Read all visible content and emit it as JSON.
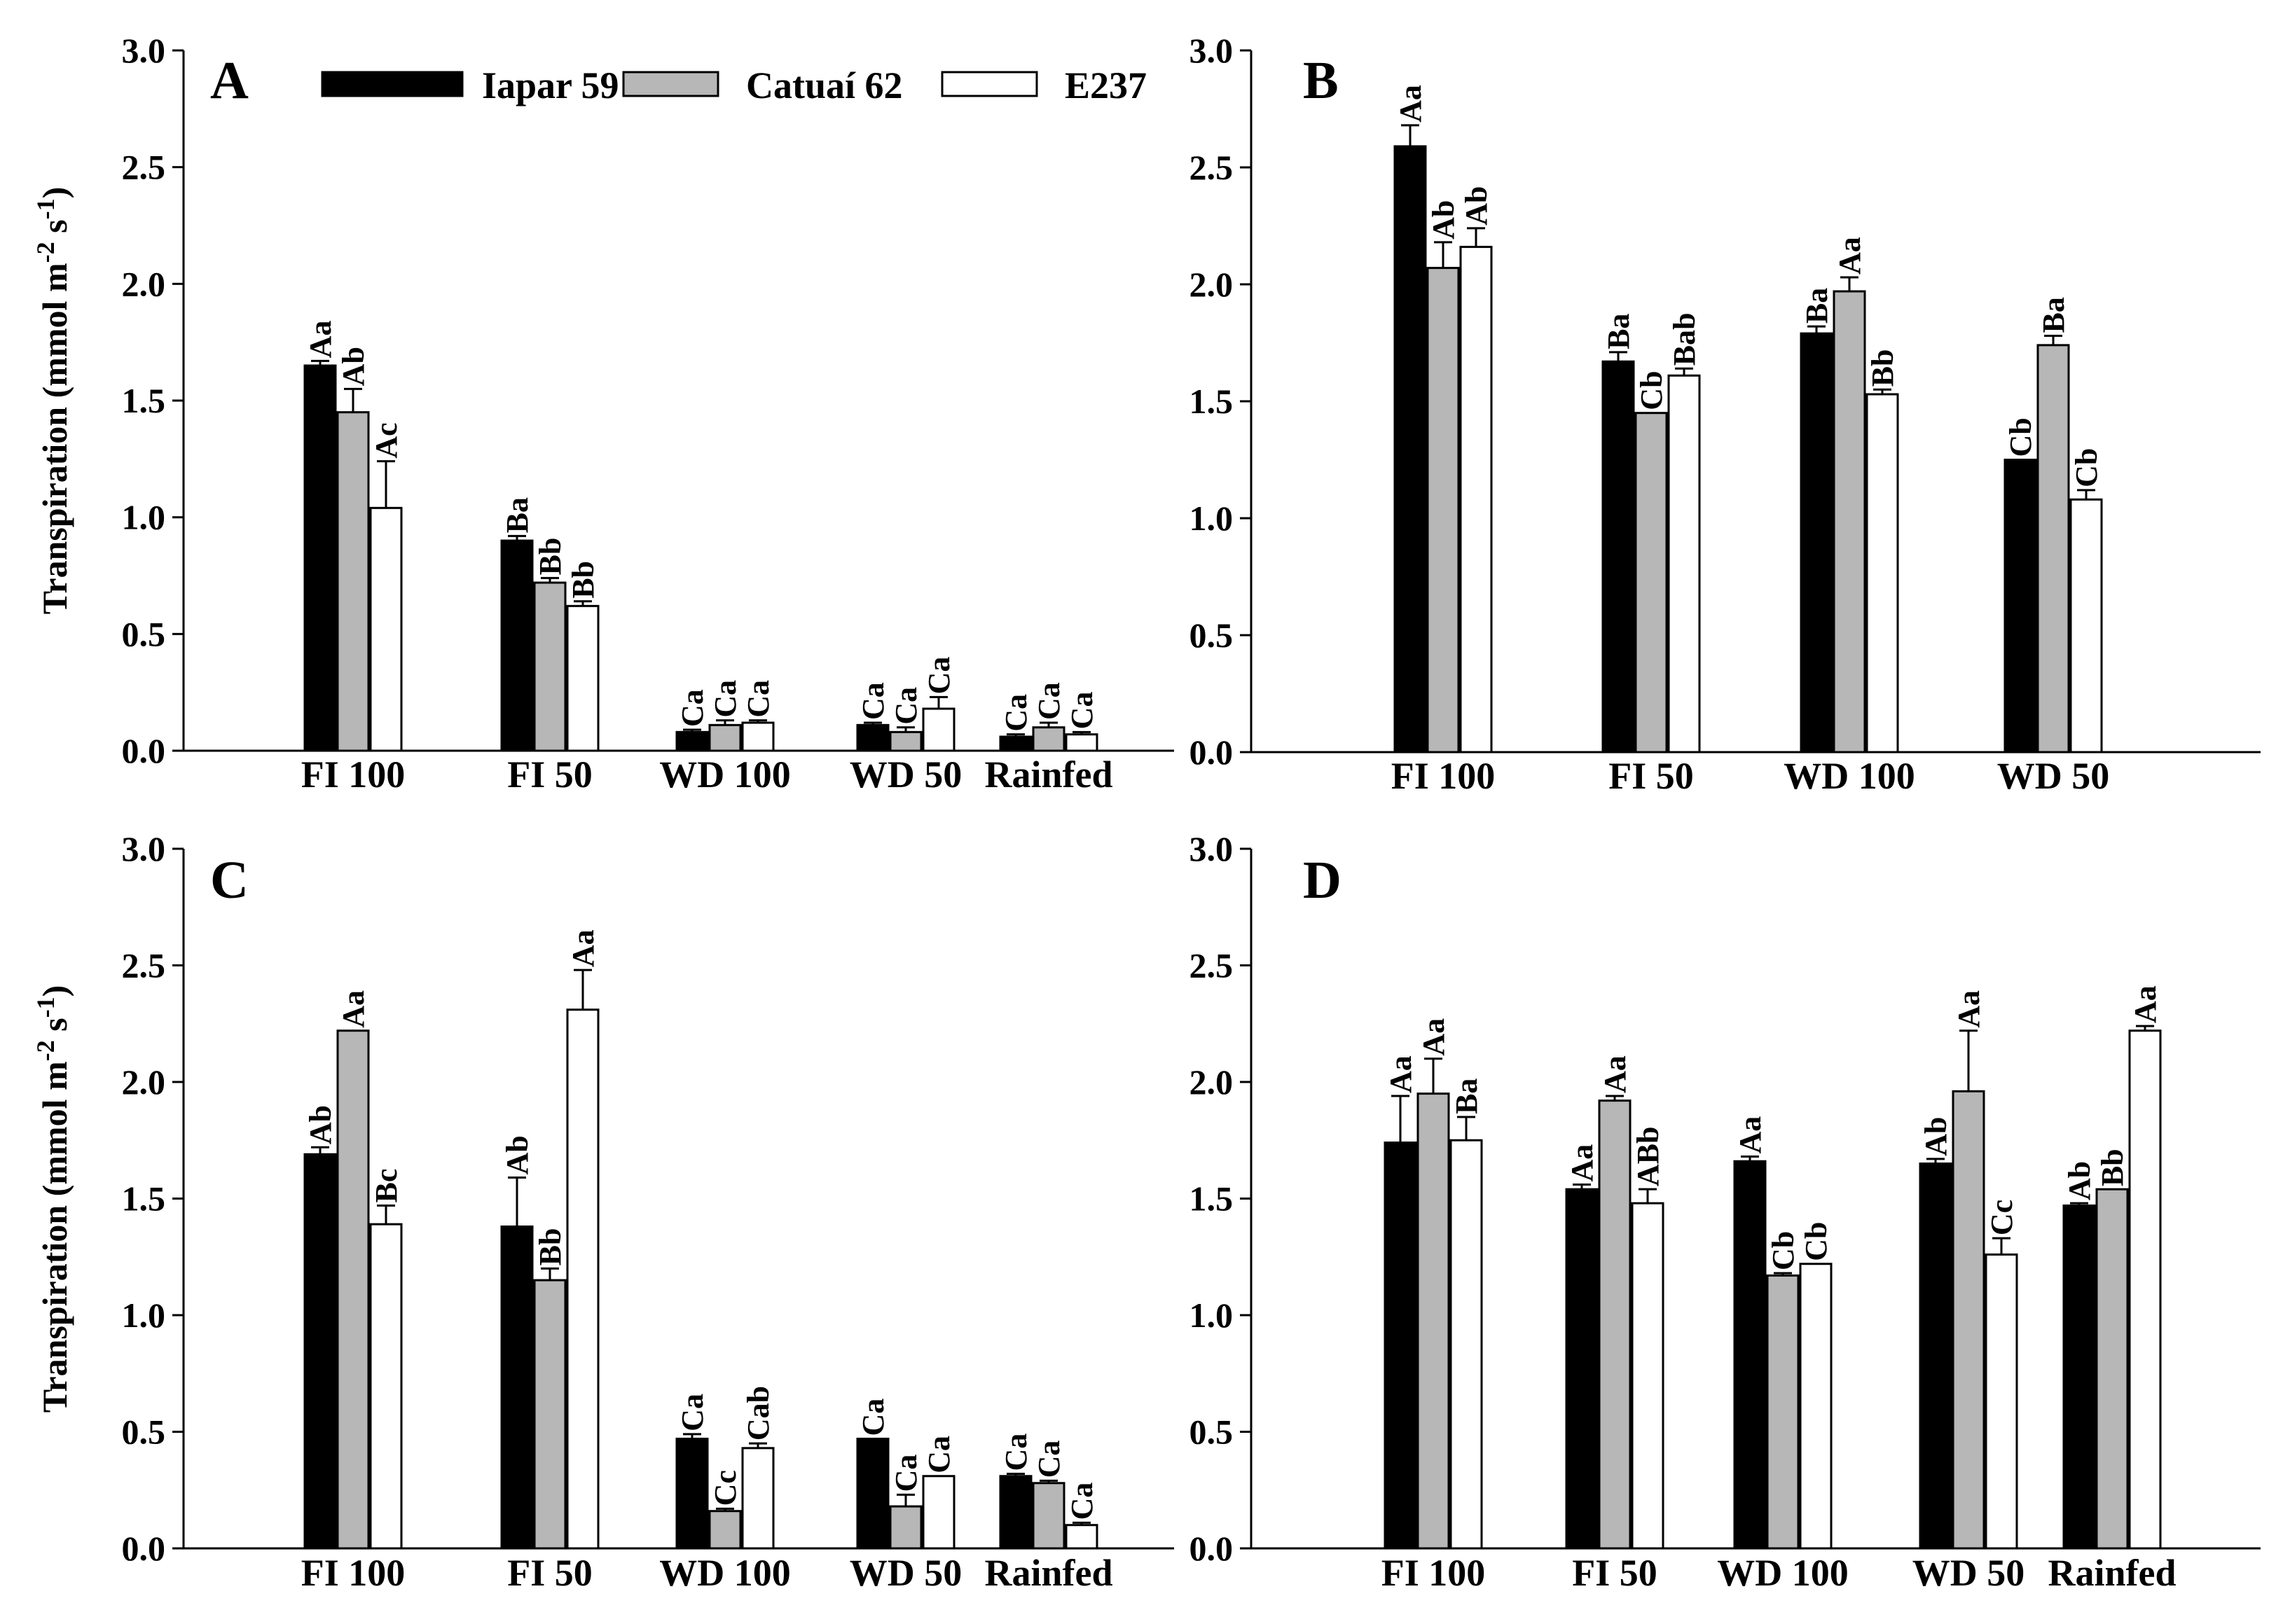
{
  "colors": {
    "Iapar 59": "#000000",
    "Catuaí 62": "#b7b7b7",
    "E237": "#ffffff"
  },
  "chart_data": [
    {
      "type": "bar",
      "panel": "A",
      "ylabel": "Transpiration (mmol m",
      "ylabel_sup1": "-2",
      "ylabel_mid": " s",
      "ylabel_sup2": "-1",
      "ylabel_end": ")",
      "ylim": [
        0,
        3.0
      ],
      "yticks": [
        "0.0",
        "0.5",
        "1.0",
        "1.5",
        "2.0",
        "2.5",
        "3.0"
      ],
      "categories": [
        "FI 100",
        "FI 50",
        "WD 100",
        "WD 50",
        "Rainfed"
      ],
      "legend": [
        "Iapar 59",
        "Catuaí 62",
        "E237"
      ],
      "series": [
        {
          "name": "Iapar 59",
          "values": [
            1.65,
            0.9,
            0.08,
            0.11,
            0.06
          ],
          "errors": [
            0.02,
            0.02,
            0.01,
            0.01,
            0.01
          ],
          "labels": [
            "Aa",
            "Ba",
            "Ca",
            "Ca",
            "Ca"
          ]
        },
        {
          "name": "Catuaí 62",
          "values": [
            1.45,
            0.72,
            0.11,
            0.08,
            0.1
          ],
          "errors": [
            0.1,
            0.02,
            0.02,
            0.02,
            0.02
          ],
          "labels": [
            "Ab",
            "Bb",
            "Ca",
            "Ca",
            "Ca"
          ]
        },
        {
          "name": "E237",
          "values": [
            1.04,
            0.62,
            0.12,
            0.18,
            0.07
          ],
          "errors": [
            0.2,
            0.02,
            0.01,
            0.05,
            0.01
          ],
          "labels": [
            "Ac",
            "Bb",
            "Ca",
            "Ca",
            "Ca"
          ]
        }
      ]
    },
    {
      "type": "bar",
      "panel": "B",
      "ylabel": "",
      "ylim": [
        0,
        3.0
      ],
      "yticks": [
        "0.0",
        "0.5",
        "1.0",
        "1.5",
        "2.0",
        "2.5",
        "3.0"
      ],
      "categories": [
        "FI 100",
        "FI 50",
        "WD 100",
        "WD 50"
      ],
      "series": [
        {
          "name": "Iapar 59",
          "values": [
            2.59,
            1.67,
            1.79,
            1.25
          ],
          "errors": [
            0.09,
            0.04,
            0.03,
            0.0
          ],
          "labels": [
            "Aa",
            "Ba",
            "Ba",
            "Cb"
          ]
        },
        {
          "name": "Catuaí 62",
          "values": [
            2.07,
            1.45,
            1.97,
            1.74
          ],
          "errors": [
            0.11,
            0.0,
            0.06,
            0.04
          ],
          "labels": [
            "Ab",
            "Cb",
            "Aa",
            "Ba"
          ]
        },
        {
          "name": "E237",
          "values": [
            2.16,
            1.61,
            1.53,
            1.08
          ],
          "errors": [
            0.08,
            0.03,
            0.02,
            0.04
          ],
          "labels": [
            "Ab",
            "Bab",
            "Bb",
            "Cb"
          ]
        }
      ]
    },
    {
      "type": "bar",
      "panel": "C",
      "ylabel": "Transpiration (mmol m",
      "ylabel_sup1": "-2",
      "ylabel_mid": " s",
      "ylabel_sup2": "-1",
      "ylabel_end": ")",
      "ylim": [
        0,
        3.0
      ],
      "yticks": [
        "0.0",
        "0.5",
        "1.0",
        "1.5",
        "2.0",
        "2.5",
        "3.0"
      ],
      "categories": [
        "FI 100",
        "FI 50",
        "WD 100",
        "WD 50",
        "Rainfed"
      ],
      "series": [
        {
          "name": "Iapar 59",
          "values": [
            1.69,
            1.38,
            0.47,
            0.47,
            0.31
          ],
          "errors": [
            0.03,
            0.21,
            0.02,
            0.0,
            0.01
          ],
          "labels": [
            "Ab",
            "Ab",
            "Ca",
            "Ca",
            "Ca"
          ]
        },
        {
          "name": "Catuaí 62",
          "values": [
            2.22,
            1.15,
            0.16,
            0.18,
            0.28
          ],
          "errors": [
            0.0,
            0.05,
            0.01,
            0.05,
            0.01
          ],
          "labels": [
            "Aa",
            "Bb",
            "Cc",
            "Ca",
            "Ca"
          ]
        },
        {
          "name": "E237",
          "values": [
            1.39,
            2.31,
            0.43,
            0.31,
            0.1
          ],
          "errors": [
            0.08,
            0.17,
            0.02,
            0.0,
            0.01
          ],
          "labels": [
            "Bc",
            "Aa",
            "Cab",
            "Ca",
            "Ca"
          ]
        }
      ]
    },
    {
      "type": "bar",
      "panel": "D",
      "ylabel": "",
      "ylim": [
        0,
        3.0
      ],
      "yticks": [
        "0.0",
        "0.5",
        "1.0",
        "1.5",
        "2.0",
        "2.5",
        "3.0"
      ],
      "categories": [
        "FI 100",
        "FI 50",
        "WD 100",
        "WD 50",
        "Rainfed"
      ],
      "series": [
        {
          "name": "Iapar 59",
          "values": [
            1.74,
            1.54,
            1.66,
            1.65,
            1.47
          ],
          "errors": [
            0.2,
            0.02,
            0.02,
            0.02,
            0.01
          ],
          "labels": [
            "Aa",
            "Aa",
            "Aa",
            "Ab",
            "Ab"
          ]
        },
        {
          "name": "Catuaí 62",
          "values": [
            1.95,
            1.92,
            1.17,
            1.96,
            1.54
          ],
          "errors": [
            0.15,
            0.02,
            0.01,
            0.26,
            0.0
          ],
          "labels": [
            "Aa",
            "Aa",
            "Cb",
            "Aa",
            "Bb"
          ]
        },
        {
          "name": "E237",
          "values": [
            1.75,
            1.48,
            1.22,
            1.26,
            2.22
          ],
          "errors": [
            0.1,
            0.06,
            0.0,
            0.07,
            0.02
          ],
          "labels": [
            "Ba",
            "ABb",
            "Cb",
            "Cc",
            "Aa"
          ]
        }
      ]
    }
  ]
}
